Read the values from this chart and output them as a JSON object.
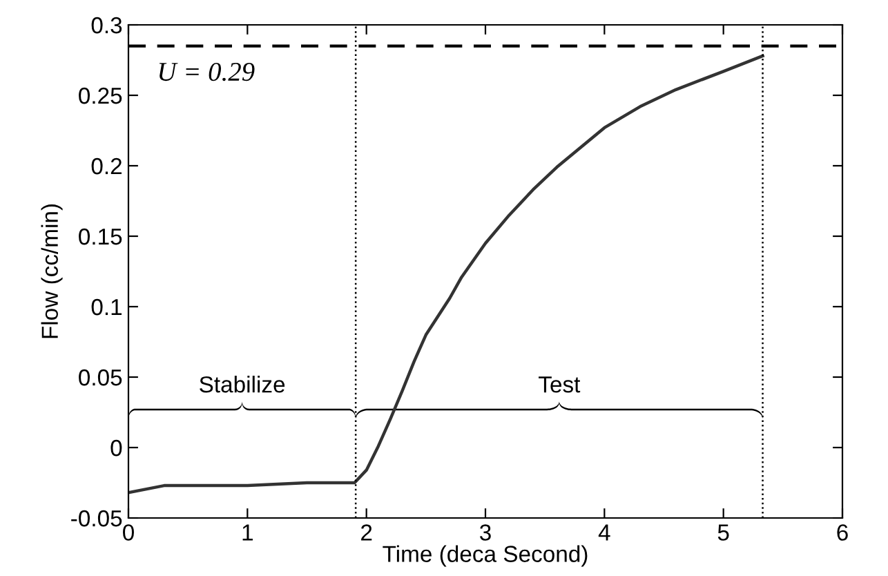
{
  "chart_data": {
    "type": "line",
    "xlabel": "Time (deca Second)",
    "ylabel": "Flow (cc/min)",
    "xlim": [
      0,
      6
    ],
    "xticks": [
      0,
      1,
      2,
      3,
      4,
      5,
      6
    ],
    "ylim": [
      -0.05,
      0.3
    ],
    "yticks": [
      -0.05,
      0,
      0.05,
      0.1,
      0.15,
      0.2,
      0.25,
      0.3
    ],
    "grid": false,
    "legend": false,
    "marker": "none",
    "line_style": "solid",
    "series": [
      {
        "color": "#333333",
        "x": [
          0,
          0.3,
          1,
          1.5,
          1.9,
          2.0,
          2.1,
          2.2,
          2.3,
          2.4,
          2.5,
          2.6,
          2.7,
          2.8,
          3.0,
          3.2,
          3.4,
          3.6,
          3.8,
          4.0,
          4.3,
          4.6,
          5.0,
          5.33
        ],
        "values": [
          -0.032,
          -0.027,
          -0.027,
          -0.025,
          -0.025,
          -0.016,
          0.001,
          0.02,
          0.04,
          0.061,
          0.08,
          0.093,
          0.106,
          0.121,
          0.145,
          0.165,
          0.183,
          0.199,
          0.213,
          0.227,
          0.242,
          0.254,
          0.267,
          0.278
        ]
      }
    ],
    "ref_lines": [
      {
        "axis": "y",
        "value": 0.285,
        "color": "#000000",
        "line_style": "dashed"
      },
      {
        "axis": "x",
        "value": 1.91,
        "color": "#000000",
        "line_style": "dotted"
      },
      {
        "axis": "x",
        "value": 5.33,
        "color": "#000000",
        "line_style": "dotted"
      }
    ],
    "annotations": [
      {
        "text": "U = 0.29"
      },
      "Stabilize",
      "Test"
    ]
  }
}
